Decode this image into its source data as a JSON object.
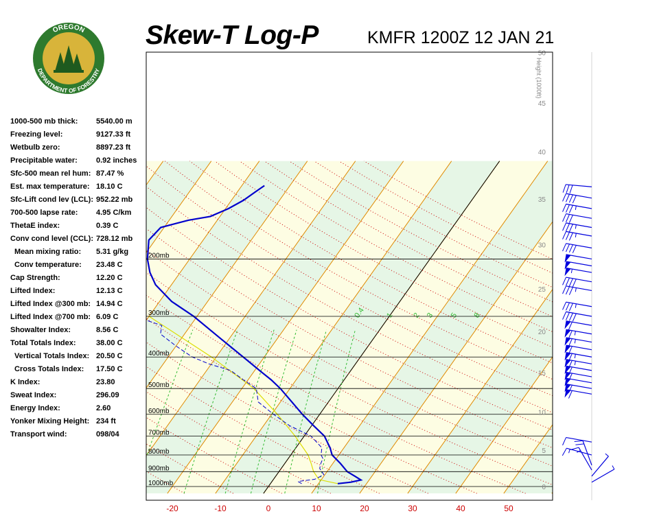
{
  "header": {
    "title": "Skew-T Log-P",
    "station": "KMFR 1200Z 12 JAN 21"
  },
  "logo": {
    "text_top": "OREGON",
    "text_bottom": "DEPARTMENT OF FORESTRY",
    "colors": {
      "ring": "#2e7a2e",
      "gold": "#d8b43a",
      "tree": "#1e5a1e"
    }
  },
  "stats": [
    {
      "label": "1000-500 mb thick:",
      "value": "5540.00 m"
    },
    {
      "label": "Freezing level:",
      "value": "9127.33 ft"
    },
    {
      "label": "Wetbulb zero:",
      "value": "8897.23 ft"
    },
    {
      "label": "Precipitable water:",
      "value": "0.92 inches"
    },
    {
      "label": "Sfc-500 mean rel hum:",
      "value": "87.47 %"
    },
    {
      "label": "Est. max temperature:",
      "value": "18.10 C"
    },
    {
      "label": "Sfc-Lift cond lev (LCL):",
      "value": "952.22 mb"
    },
    {
      "label": "700-500 lapse rate:",
      "value": "4.95 C/km"
    },
    {
      "label": "ThetaE index:",
      "value": "0.39 C"
    },
    {
      "label": "Conv cond level (CCL):",
      "value": "728.12 mb"
    },
    {
      "label": "Mean mixing ratio:",
      "value": "5.31 g/kg",
      "indent": true
    },
    {
      "label": "Conv temperature:",
      "value": "23.48 C",
      "indent": true
    },
    {
      "label": "Cap Strength:",
      "value": "12.20 C"
    },
    {
      "label": "Lifted Index:",
      "value": "12.13 C"
    },
    {
      "label": "Lifted Index @300 mb:",
      "value": "14.94 C"
    },
    {
      "label": "Lifted Index @700 mb:",
      "value": "6.09 C"
    },
    {
      "label": "Showalter Index:",
      "value": "8.56 C"
    },
    {
      "label": "Total Totals Index:",
      "value": "38.00 C"
    },
    {
      "label": "Vertical Totals Index:",
      "value": "20.50 C",
      "indent": true
    },
    {
      "label": "Cross Totals Index:",
      "value": "17.50 C",
      "indent": true
    },
    {
      "label": "K Index:",
      "value": "23.80"
    },
    {
      "label": "Sweat Index:",
      "value": "296.09"
    },
    {
      "label": "Energy Index:",
      "value": "2.60"
    },
    {
      "label": "Yonker Mixing Height:",
      "value": "234 ft"
    },
    {
      "label": "Transport wind:",
      "value": "098/04"
    }
  ],
  "chart_data": {
    "type": "line",
    "xlabel": "",
    "ylabel": "",
    "x_ticks": [
      -20,
      -10,
      0,
      10,
      20,
      30,
      40,
      50
    ],
    "pressure_levels": [
      {
        "p": 1000,
        "label": "1000mb"
      },
      {
        "p": 900,
        "label": "900mb"
      },
      {
        "p": 800,
        "label": "800mb"
      },
      {
        "p": 700,
        "label": "700mb"
      },
      {
        "p": 600,
        "label": "600mb"
      },
      {
        "p": 500,
        "label": "500mb"
      },
      {
        "p": 400,
        "label": "400mb"
      },
      {
        "p": 300,
        "label": "300mb"
      },
      {
        "p": 200,
        "label": "200mb"
      }
    ],
    "height_axis_label": "Height (1000ft)",
    "height_ticks": [
      0,
      5,
      10,
      15,
      20,
      25,
      30,
      35,
      40,
      45,
      50
    ],
    "mixing_ratio_labels": [
      "0.4",
      "1",
      "2",
      "3",
      "5",
      "8"
    ],
    "temperature_profile": [
      {
        "p": 980,
        "t": 14.0
      },
      {
        "p": 970,
        "t": 16.5
      },
      {
        "p": 955,
        "t": 18.3
      },
      {
        "p": 930,
        "t": 16.5
      },
      {
        "p": 900,
        "t": 14.2
      },
      {
        "p": 850,
        "t": 11.6
      },
      {
        "p": 800,
        "t": 8.6
      },
      {
        "p": 760,
        "t": 7.1
      },
      {
        "p": 700,
        "t": 4.2
      },
      {
        "p": 650,
        "t": 0.4
      },
      {
        "p": 600,
        "t": -3.6
      },
      {
        "p": 550,
        "t": -7.6
      },
      {
        "p": 500,
        "t": -12.0
      },
      {
        "p": 470,
        "t": -15.2
      },
      {
        "p": 440,
        "t": -19.0
      },
      {
        "p": 400,
        "t": -24.4
      },
      {
        "p": 350,
        "t": -32.0
      },
      {
        "p": 300,
        "t": -40.7
      },
      {
        "p": 270,
        "t": -47.5
      },
      {
        "p": 240,
        "t": -53.3
      },
      {
        "p": 220,
        "t": -56.3
      },
      {
        "p": 200,
        "t": -58.8
      },
      {
        "p": 175,
        "t": -61.3
      },
      {
        "p": 160,
        "t": -60.7
      },
      {
        "p": 152,
        "t": -56.0
      },
      {
        "p": 148,
        "t": -52.0
      },
      {
        "p": 140,
        "t": -49.4
      },
      {
        "p": 132,
        "t": -47.5
      },
      {
        "p": 124,
        "t": -46.2
      },
      {
        "p": 119,
        "t": -45.3
      }
    ],
    "dewpoint_profile": [
      {
        "p": 980,
        "t": 6.5
      },
      {
        "p": 965,
        "t": 5.4
      },
      {
        "p": 950,
        "t": 8.6
      },
      {
        "p": 920,
        "t": 9.8
      },
      {
        "p": 880,
        "t": 8.0
      },
      {
        "p": 850,
        "t": 7.5
      },
      {
        "p": 820,
        "t": 7.2
      },
      {
        "p": 800,
        "t": 6.3
      },
      {
        "p": 760,
        "t": 5.4
      },
      {
        "p": 700,
        "t": 1.4
      },
      {
        "p": 650,
        "t": -4.6
      },
      {
        "p": 600,
        "t": -9.6
      },
      {
        "p": 550,
        "t": -14.6
      },
      {
        "p": 500,
        "t": -17.0
      },
      {
        "p": 470,
        "t": -21.0
      },
      {
        "p": 440,
        "t": -25.0
      },
      {
        "p": 420,
        "t": -30.5
      },
      {
        "p": 400,
        "t": -35.0
      },
      {
        "p": 370,
        "t": -40.0
      },
      {
        "p": 340,
        "t": -45.0
      },
      {
        "p": 320,
        "t": -46.0
      },
      {
        "p": 300,
        "t": -53.0
      },
      {
        "p": 280,
        "t": -58.0
      },
      {
        "p": 260,
        "t": -63.0
      },
      {
        "p": 240,
        "t": -67.0
      },
      {
        "p": 220,
        "t": -70.0
      },
      {
        "p": 200,
        "t": -74.0
      },
      {
        "p": 180,
        "t": -77.0
      },
      {
        "p": 165,
        "t": -72.0
      },
      {
        "p": 150,
        "t": -68.0
      },
      {
        "p": 140,
        "t": -67.0
      },
      {
        "p": 130,
        "t": -71.0
      },
      {
        "p": 125,
        "t": -69.0
      }
    ],
    "parcel_profile": [
      {
        "p": 980,
        "t": 14.0
      },
      {
        "p": 952,
        "t": 9.5
      },
      {
        "p": 900,
        "t": 7.2
      },
      {
        "p": 850,
        "t": 5.5
      },
      {
        "p": 800,
        "t": 3.6
      },
      {
        "p": 700,
        "t": -1.9
      },
      {
        "p": 600,
        "t": -8.8
      },
      {
        "p": 500,
        "t": -17.5
      },
      {
        "p": 400,
        "t": -31.0
      },
      {
        "p": 300,
        "t": -50.0
      }
    ],
    "wind_profile": [
      {
        "p": 970,
        "dir": 60,
        "spd": 5
      },
      {
        "p": 930,
        "dir": 40,
        "spd": 5
      },
      {
        "p": 890,
        "dir": 330,
        "spd": 15
      },
      {
        "p": 860,
        "dir": 340,
        "spd": 20
      },
      {
        "p": 800,
        "dir": 285,
        "spd": 15
      },
      {
        "p": 730,
        "dir": 280,
        "spd": 10
      },
      {
        "p": 520,
        "dir": 280,
        "spd": 60
      },
      {
        "p": 500,
        "dir": 280,
        "spd": 60
      },
      {
        "p": 480,
        "dir": 280,
        "spd": 50
      },
      {
        "p": 460,
        "dir": 280,
        "spd": 60
      },
      {
        "p": 440,
        "dir": 280,
        "spd": 60
      },
      {
        "p": 420,
        "dir": 280,
        "spd": 65
      },
      {
        "p": 400,
        "dir": 280,
        "spd": 65
      },
      {
        "p": 380,
        "dir": 280,
        "spd": 60
      },
      {
        "p": 360,
        "dir": 280,
        "spd": 65
      },
      {
        "p": 340,
        "dir": 280,
        "spd": 65
      },
      {
        "p": 320,
        "dir": 280,
        "spd": 60
      },
      {
        "p": 300,
        "dir": 280,
        "spd": 40
      },
      {
        "p": 280,
        "dir": 280,
        "spd": 35
      },
      {
        "p": 250,
        "dir": 280,
        "spd": 35
      },
      {
        "p": 235,
        "dir": 280,
        "spd": 40
      },
      {
        "p": 220,
        "dir": 280,
        "spd": 55
      },
      {
        "p": 210,
        "dir": 280,
        "spd": 50
      },
      {
        "p": 200,
        "dir": 280,
        "spd": 50
      },
      {
        "p": 185,
        "dir": 280,
        "spd": 40
      },
      {
        "p": 170,
        "dir": 280,
        "spd": 35
      },
      {
        "p": 160,
        "dir": 280,
        "spd": 35
      },
      {
        "p": 150,
        "dir": 280,
        "spd": 30
      },
      {
        "p": 140,
        "dir": 280,
        "spd": 35
      },
      {
        "p": 130,
        "dir": 280,
        "spd": 40
      },
      {
        "p": 120,
        "dir": 275,
        "spd": 30
      }
    ],
    "colors": {
      "temperature": "#0000cc",
      "dewpoint": "#0000cc",
      "parcel": "#dddd00",
      "isotherm": "#e08a00",
      "dry_adiabat": "#cc0000",
      "moist_adiabat": "#33aa33",
      "mixing_ratio": "#33bb33",
      "band_a": "#fdfde3",
      "band_b": "#e6f6e6",
      "x_tick": "#cc0000",
      "wind": "#0000dd"
    }
  }
}
